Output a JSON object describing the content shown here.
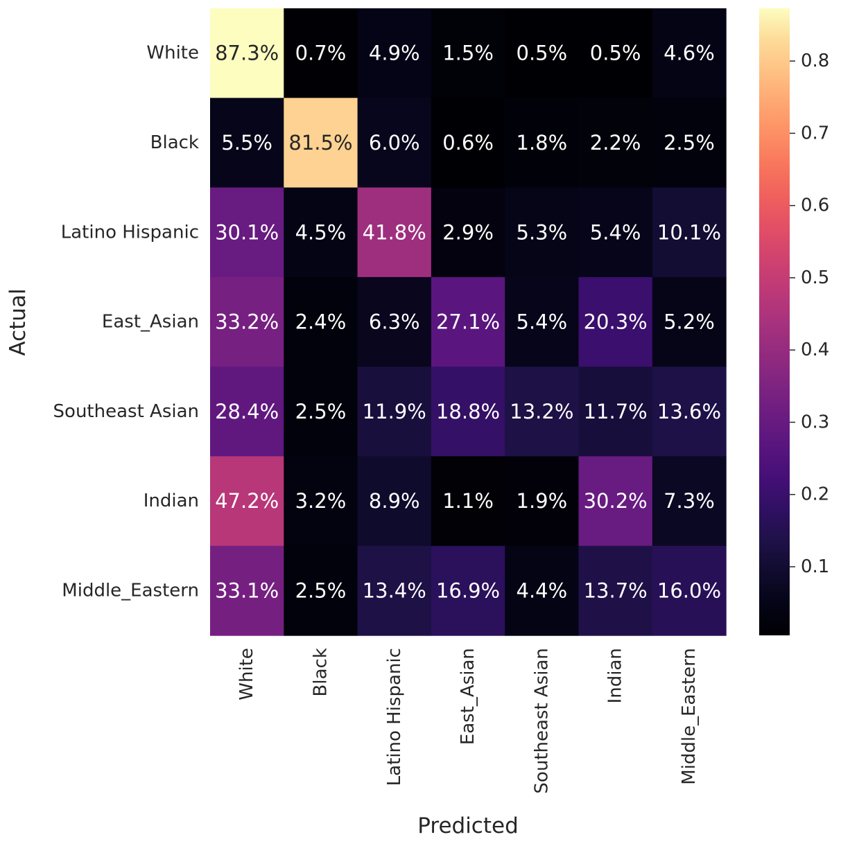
{
  "chart_data": {
    "type": "heatmap",
    "title": "",
    "xlabel": "Predicted",
    "ylabel": "Actual",
    "rows": [
      "White",
      "Black",
      "Latino Hispanic",
      "East_Asian",
      "Southeast Asian",
      "Indian",
      "Middle_Eastern"
    ],
    "columns": [
      "White",
      "Black",
      "Latino Hispanic",
      "East_Asian",
      "Southeast Asian",
      "Indian",
      "Middle_Eastern"
    ],
    "values": [
      [
        0.873,
        0.007,
        0.049,
        0.015,
        0.005,
        0.005,
        0.046
      ],
      [
        0.055,
        0.815,
        0.06,
        0.006,
        0.018,
        0.022,
        0.025
      ],
      [
        0.301,
        0.045,
        0.418,
        0.029,
        0.053,
        0.054,
        0.101
      ],
      [
        0.332,
        0.024,
        0.063,
        0.271,
        0.054,
        0.203,
        0.052
      ],
      [
        0.284,
        0.025,
        0.119,
        0.188,
        0.132,
        0.117,
        0.136
      ],
      [
        0.472,
        0.032,
        0.089,
        0.011,
        0.019,
        0.302,
        0.073
      ],
      [
        0.331,
        0.025,
        0.134,
        0.169,
        0.044,
        0.137,
        0.16
      ]
    ],
    "labels": [
      [
        "87.3%",
        "0.7%",
        "4.9%",
        "1.5%",
        "0.5%",
        "0.5%",
        "4.6%"
      ],
      [
        "5.5%",
        "81.5%",
        "6.0%",
        "0.6%",
        "1.8%",
        "2.2%",
        "2.5%"
      ],
      [
        "30.1%",
        "4.5%",
        "41.8%",
        "2.9%",
        "5.3%",
        "5.4%",
        "10.1%"
      ],
      [
        "33.2%",
        "2.4%",
        "6.3%",
        "27.1%",
        "5.4%",
        "20.3%",
        "5.2%"
      ],
      [
        "28.4%",
        "2.5%",
        "11.9%",
        "18.8%",
        "13.2%",
        "11.7%",
        "13.6%"
      ],
      [
        "47.2%",
        "3.2%",
        "8.9%",
        "1.1%",
        "1.9%",
        "30.2%",
        "7.3%"
      ],
      [
        "33.1%",
        "2.5%",
        "13.4%",
        "16.9%",
        "4.4%",
        "13.7%",
        "16.0%"
      ]
    ],
    "colormap": "magma",
    "color_range": [
      0.005,
      0.873
    ],
    "colorbar_ticks": [
      0.1,
      0.2,
      0.3,
      0.4,
      0.5,
      0.6,
      0.7,
      0.8
    ],
    "colorbar_tick_labels": [
      "0.1",
      "0.2",
      "0.3",
      "0.4",
      "0.5",
      "0.6",
      "0.7",
      "0.8"
    ],
    "grid": false
  }
}
